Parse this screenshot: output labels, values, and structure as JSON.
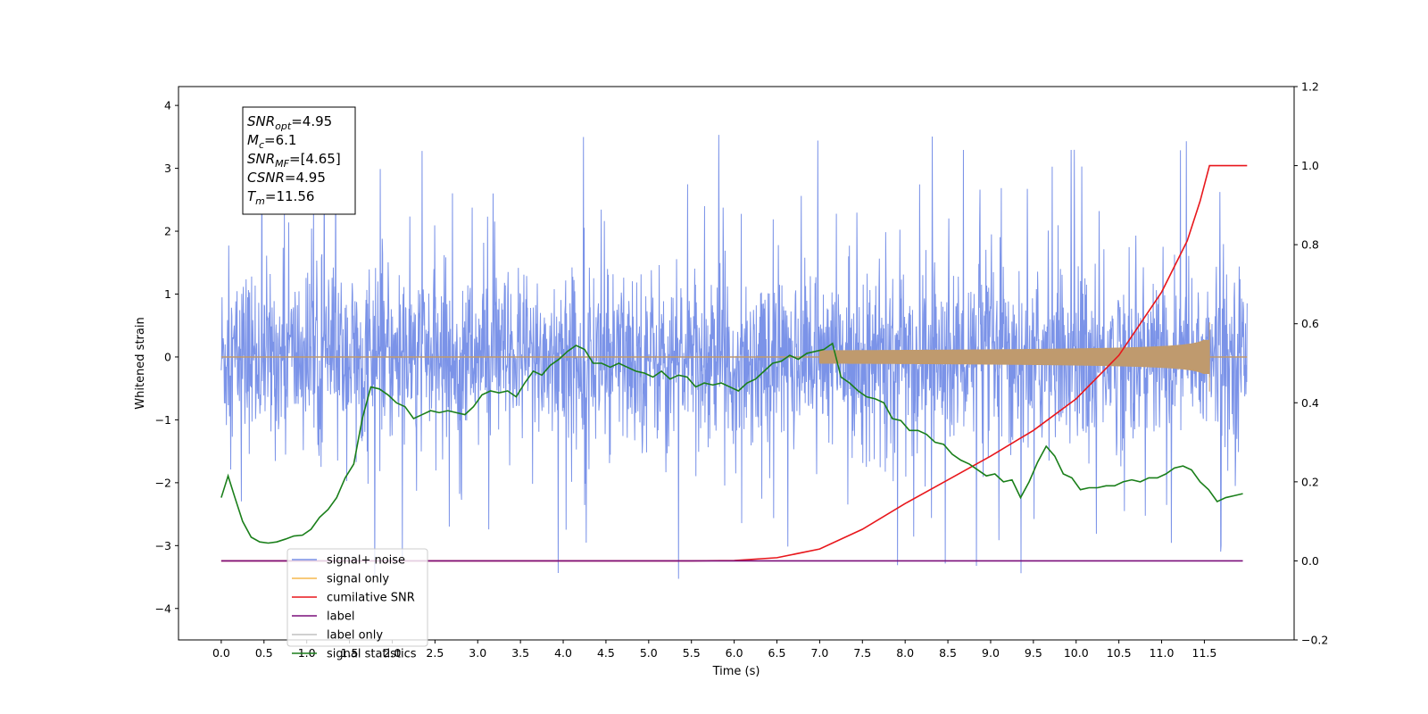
{
  "chart_data": {
    "type": "line",
    "title": "",
    "xlabel": "Time (s)",
    "ylabel": "Whitened strain",
    "y2label": "",
    "xlim": [
      -0.5,
      12.55
    ],
    "ylim": [
      -4.5,
      4.3
    ],
    "y2lim": [
      -0.2,
      1.2
    ],
    "x_ticks": [
      "0.0",
      "0.5",
      "1.0",
      "1.5",
      "2.0",
      "2.5",
      "3.0",
      "3.5",
      "4.0",
      "4.5",
      "5.0",
      "5.5",
      "6.0",
      "6.5",
      "7.0",
      "7.5",
      "8.0",
      "8.5",
      "9.0",
      "9.5",
      "10.0",
      "10.5",
      "11.0",
      "11.5"
    ],
    "y_ticks": [
      "4",
      "3",
      "2",
      "1",
      "0",
      "−1",
      "−2",
      "−3",
      "−4"
    ],
    "y2_ticks": [
      "1.2",
      "1.0",
      "0.8",
      "0.6",
      "0.4",
      "0.2",
      "0.0",
      "−0.2"
    ],
    "grid": false,
    "legend_position": "lower-left",
    "annotation": {
      "lines": [
        {
          "base": "SNR",
          "sub": "opt",
          "value": "=4.95"
        },
        {
          "base": "M",
          "sub": "c",
          "value": "=6.1"
        },
        {
          "base": "SNR",
          "sub": "MF",
          "value": "=[4.65]"
        },
        {
          "base": "CSNR",
          "sub": "",
          "value": "=4.95"
        },
        {
          "base": "T",
          "sub": "m",
          "value": "=11.56"
        }
      ]
    },
    "series": [
      {
        "name": "signal+ noise",
        "axis": "left",
        "color": "#7b93e8",
        "style": "noise",
        "x_range": [
          0.0,
          12.0
        ],
        "envelope": {
          "typical_max": 1.5,
          "typical_min": -1.5,
          "peak_max": 3.9,
          "peak_min": -3.9
        }
      },
      {
        "name": "signal only",
        "axis": "left",
        "color": "#f5b94e",
        "style": "chirp",
        "x_range": [
          0.0,
          11.56
        ],
        "amplitude_at_merger": 0.55
      },
      {
        "name": "cumilative SNR",
        "axis": "right",
        "color": "#e8171c",
        "x": [
          0.0,
          5.5,
          6.0,
          6.5,
          7.0,
          7.5,
          8.0,
          8.5,
          9.0,
          9.5,
          10.0,
          10.5,
          11.0,
          11.3,
          11.45,
          11.56,
          12.0
        ],
        "values": [
          0.0,
          0.0,
          0.001,
          0.008,
          0.03,
          0.08,
          0.145,
          0.205,
          0.265,
          0.33,
          0.41,
          0.52,
          0.68,
          0.81,
          0.91,
          1.0,
          1.0
        ]
      },
      {
        "name": "label",
        "axis": "right",
        "color": "#7a0f7a",
        "x": [
          0.0,
          11.95
        ],
        "values": [
          0.0,
          0.0
        ]
      },
      {
        "name": "label only",
        "axis": "right",
        "color": "#c0c0c0",
        "x": [],
        "values": []
      },
      {
        "name": "signal statistics",
        "axis": "right",
        "color": "#1a7f1a",
        "x": [
          0.0,
          0.08,
          0.16,
          0.25,
          0.35,
          0.45,
          0.55,
          0.65,
          0.75,
          0.85,
          0.95,
          1.05,
          1.15,
          1.25,
          1.35,
          1.45,
          1.55,
          1.65,
          1.75,
          1.85,
          1.95,
          2.05,
          2.15,
          2.25,
          2.35,
          2.45,
          2.55,
          2.65,
          2.75,
          2.85,
          2.95,
          3.05,
          3.15,
          3.25,
          3.35,
          3.45,
          3.55,
          3.65,
          3.75,
          3.85,
          3.95,
          4.05,
          4.15,
          4.25,
          4.35,
          4.45,
          4.55,
          4.65,
          4.75,
          4.85,
          4.95,
          5.05,
          5.15,
          5.25,
          5.35,
          5.45,
          5.55,
          5.65,
          5.75,
          5.85,
          5.95,
          6.05,
          6.15,
          6.25,
          6.35,
          6.45,
          6.55,
          6.65,
          6.75,
          6.85,
          6.95,
          7.05,
          7.15,
          7.25,
          7.35,
          7.45,
          7.55,
          7.65,
          7.75,
          7.85,
          7.95,
          8.05,
          8.15,
          8.25,
          8.35,
          8.45,
          8.55,
          8.65,
          8.75,
          8.85,
          8.95,
          9.05,
          9.15,
          9.25,
          9.35,
          9.45,
          9.55,
          9.65,
          9.75,
          9.85,
          9.95,
          10.05,
          10.15,
          10.25,
          10.35,
          10.45,
          10.55,
          10.65,
          10.75,
          10.85,
          10.95,
          11.05,
          11.15,
          11.25,
          11.35,
          11.45,
          11.55,
          11.65,
          11.75,
          11.85,
          11.95
        ],
        "values": [
          0.16,
          0.215,
          0.16,
          0.1,
          0.06,
          0.048,
          0.045,
          0.048,
          0.055,
          0.063,
          0.065,
          0.08,
          0.11,
          0.13,
          0.16,
          0.21,
          0.245,
          0.36,
          0.44,
          0.435,
          0.42,
          0.4,
          0.39,
          0.36,
          0.37,
          0.38,
          0.375,
          0.38,
          0.375,
          0.37,
          0.39,
          0.42,
          0.43,
          0.425,
          0.43,
          0.415,
          0.45,
          0.48,
          0.47,
          0.495,
          0.51,
          0.53,
          0.545,
          0.535,
          0.5,
          0.5,
          0.49,
          0.5,
          0.49,
          0.48,
          0.475,
          0.465,
          0.48,
          0.46,
          0.47,
          0.465,
          0.44,
          0.45,
          0.445,
          0.45,
          0.44,
          0.43,
          0.45,
          0.46,
          0.48,
          0.5,
          0.505,
          0.52,
          0.51,
          0.525,
          0.53,
          0.535,
          0.55,
          0.465,
          0.45,
          0.43,
          0.415,
          0.41,
          0.4,
          0.36,
          0.355,
          0.33,
          0.33,
          0.32,
          0.3,
          0.295,
          0.27,
          0.255,
          0.245,
          0.23,
          0.215,
          0.22,
          0.2,
          0.205,
          0.16,
          0.2,
          0.25,
          0.29,
          0.265,
          0.22,
          0.21,
          0.18,
          0.185,
          0.185,
          0.19,
          0.19,
          0.2,
          0.205,
          0.2,
          0.21,
          0.21,
          0.22,
          0.235,
          0.24,
          0.23,
          0.2,
          0.18,
          0.15,
          0.16,
          0.165,
          0.17
        ]
      }
    ]
  }
}
